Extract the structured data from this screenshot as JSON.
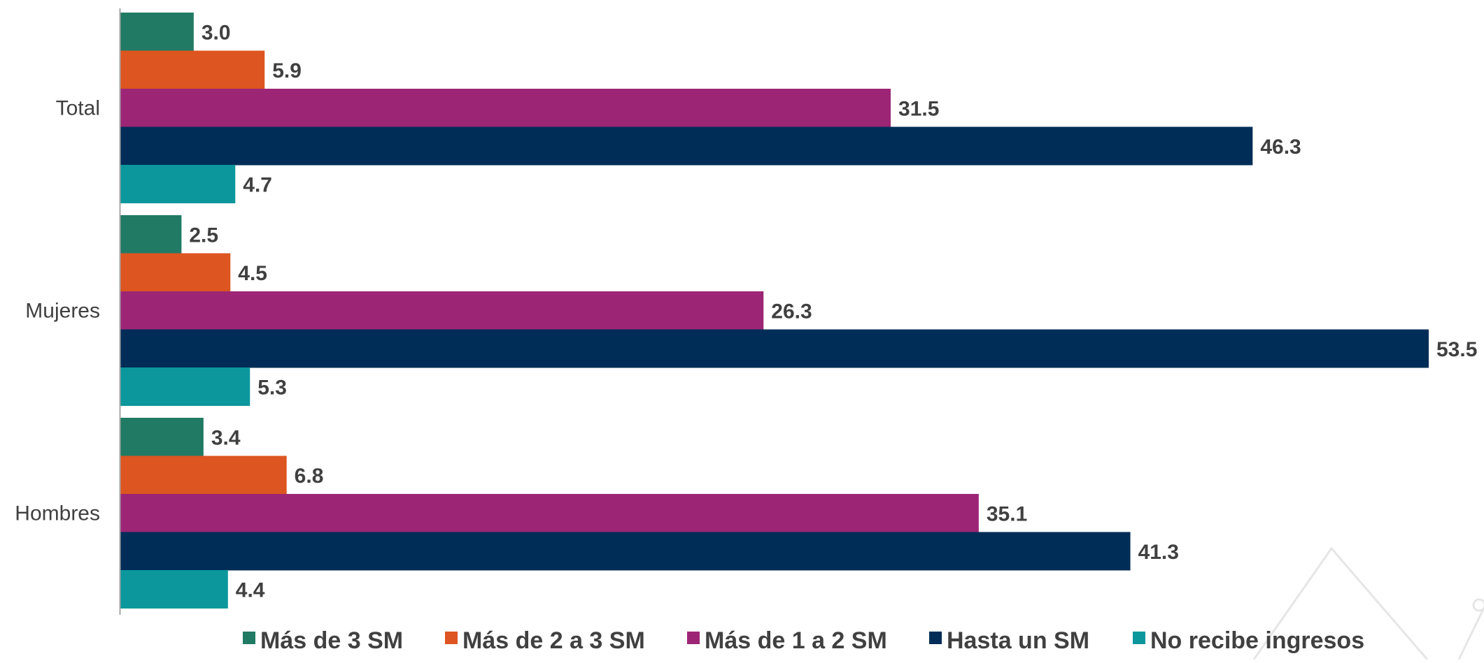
{
  "chart_data": {
    "type": "bar",
    "orientation": "horizontal",
    "categories": [
      "Total",
      "Mujeres",
      "Hombres"
    ],
    "series": [
      {
        "name": "Más de 3 SM",
        "color": "#217a63",
        "values": [
          3.0,
          2.5,
          3.4
        ]
      },
      {
        "name": "Más de 2 a 3 SM",
        "color": "#dd5520",
        "values": [
          5.9,
          4.5,
          6.8
        ]
      },
      {
        "name": "Más de 1 a 2 SM",
        "color": "#9d2576",
        "values": [
          31.5,
          26.3,
          35.1
        ]
      },
      {
        "name": "Hasta un SM",
        "color": "#002d57",
        "values": [
          46.3,
          53.5,
          41.3
        ]
      },
      {
        "name": "No recibe ingresos",
        "color": "#0b979c",
        "values": [
          4.7,
          5.3,
          4.4
        ]
      }
    ],
    "data_labels": {
      "Total": [
        "3.0",
        "5.9",
        "31.5",
        "46.3",
        "4.7"
      ],
      "Mujeres": [
        "2.5",
        "4.5",
        "26.3",
        "53.5",
        "5.3"
      ],
      "Hombres": [
        "3.4",
        "6.8",
        "35.1",
        "41.3",
        "4.4"
      ]
    },
    "xlim": [
      0,
      53.5
    ],
    "grid": false,
    "legend_position": "bottom",
    "colors": {
      "axis": "#a6a6a6",
      "text": "#404040",
      "watermark": "#d9d9d9"
    }
  }
}
